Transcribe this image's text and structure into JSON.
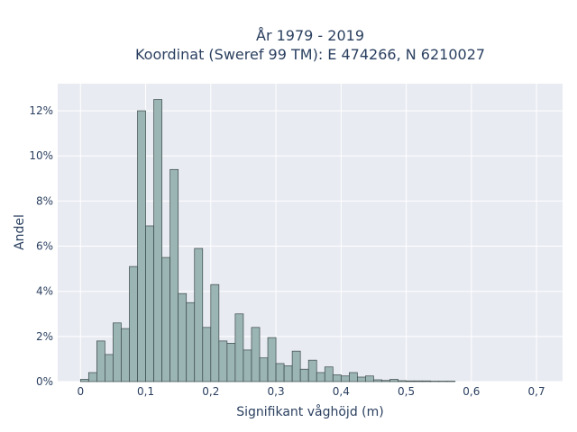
{
  "chart_data": {
    "type": "bar",
    "title_line1": "År 1979 - 2019",
    "title_line2": "Koordinat (Sweref 99 TM): E 474266, N 6210027",
    "xlabel": "Signifikant våghöjd (m)",
    "ylabel": "Andel",
    "xlim": [
      -0.035,
      0.74
    ],
    "ylim": [
      0,
      13.2
    ],
    "bin_width": 0.0125,
    "bin_start": 0,
    "x_ticks": [
      {
        "value": 0,
        "label": "0"
      },
      {
        "value": 0.1,
        "label": "0,1"
      },
      {
        "value": 0.2,
        "label": "0,2"
      },
      {
        "value": 0.3,
        "label": "0,3"
      },
      {
        "value": 0.4,
        "label": "0,4"
      },
      {
        "value": 0.5,
        "label": "0,5"
      },
      {
        "value": 0.6,
        "label": "0,6"
      },
      {
        "value": 0.7,
        "label": "0,7"
      }
    ],
    "y_ticks": [
      {
        "value": 0,
        "label": "0%"
      },
      {
        "value": 2,
        "label": "2%"
      },
      {
        "value": 4,
        "label": "4%"
      },
      {
        "value": 6,
        "label": "6%"
      },
      {
        "value": 8,
        "label": "8%"
      },
      {
        "value": 10,
        "label": "10%"
      },
      {
        "value": 12,
        "label": "12%"
      }
    ],
    "grid": true,
    "values": [
      0.1,
      0.4,
      1.8,
      1.2,
      2.6,
      2.35,
      5.1,
      12.0,
      6.9,
      12.5,
      5.5,
      9.4,
      3.9,
      3.5,
      5.9,
      2.4,
      4.3,
      1.8,
      1.7,
      3.0,
      1.4,
      2.4,
      1.05,
      1.95,
      0.8,
      0.7,
      1.35,
      0.55,
      0.95,
      0.4,
      0.65,
      0.3,
      0.25,
      0.4,
      0.2,
      0.25,
      0.08,
      0.05,
      0.1,
      0.04,
      0.03,
      0.03,
      0.03,
      0.02,
      0.02,
      0.02
    ],
    "colors": {
      "bar_fill": "#9bb4b4",
      "bar_stroke": "#3b4a4a",
      "plot_bg": "#e9ebf2",
      "grid": "#ffffff"
    }
  }
}
